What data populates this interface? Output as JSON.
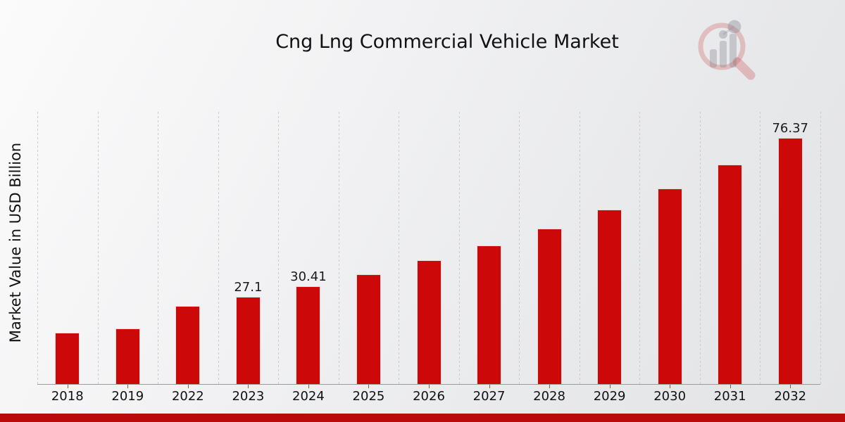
{
  "page": {
    "title": "Cng Lng Commercial Vehicle Market",
    "watermark": "market-research-future-logo"
  },
  "chart_data": {
    "type": "bar",
    "title": "Cng Lng Commercial Vehicle Market",
    "xlabel": "",
    "ylabel": "Market Value in USD Billion",
    "categories": [
      "2018",
      "2019",
      "2022",
      "2023",
      "2024",
      "2025",
      "2026",
      "2027",
      "2028",
      "2029",
      "2030",
      "2031",
      "2032"
    ],
    "values": [
      15.9,
      17.3,
      24.2,
      27.1,
      30.41,
      34.1,
      38.3,
      43.0,
      48.2,
      54.1,
      60.7,
      68.1,
      76.37
    ],
    "data_labels": [
      "",
      "",
      "",
      "27.1",
      "30.41",
      "",
      "",
      "",
      "",
      "",
      "",
      "",
      "76.37"
    ],
    "ylim": [
      0,
      84.4
    ],
    "grid": "vertical dotted separators between categories",
    "legend_position": "none",
    "colors": {
      "bar": "#cc0808",
      "footer_ribbon": "#bb0a0a",
      "label_text": "#1a1a1a",
      "gridline": "#cbcbcd",
      "axis": "#9b9b9b"
    }
  }
}
